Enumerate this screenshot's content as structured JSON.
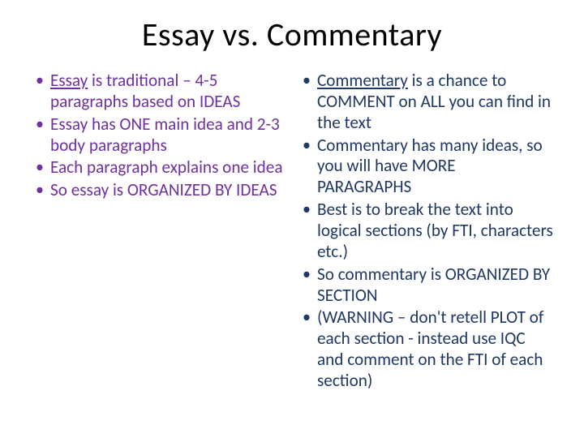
{
  "title": "Essay vs. Commentary",
  "leftColumn": {
    "color": "#7030a0",
    "items": [
      {
        "underlined": "Essay",
        "rest": " is traditional – 4-5 paragraphs based on IDEAS"
      },
      {
        "text": "Essay has ONE main idea and 2-3 body paragraphs"
      },
      {
        "text": "Each paragraph explains one idea"
      },
      {
        "text": "So essay is ORGANIZED BY IDEAS"
      }
    ]
  },
  "rightColumn": {
    "color": "#1f3864",
    "items": [
      {
        "underlined": "Commentary",
        "rest": " is a chance to COMMENT on ALL you can find in the text"
      },
      {
        "text": "Commentary has many ideas, so you will have MORE PARAGRAPHS"
      },
      {
        "text": "Best is to break the text into logical sections (by FTI, characters etc.)"
      },
      {
        "text": "So commentary is ORGANIZED BY SECTION"
      },
      {
        "text": "(WARNING – don't retell PLOT of each section - instead use IQC and comment on the FTI of each section)"
      }
    ]
  }
}
